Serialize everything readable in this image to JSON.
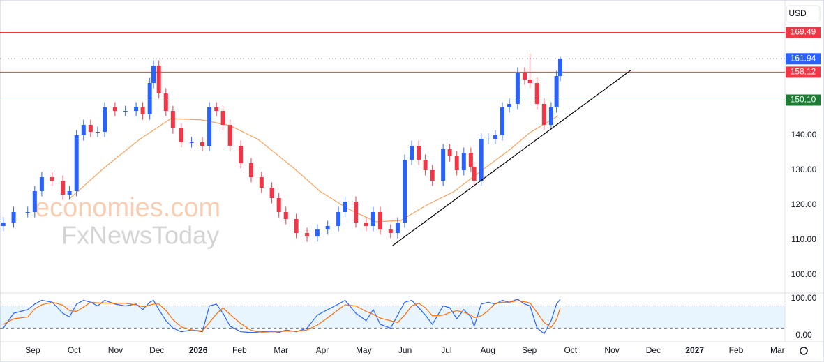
{
  "currency": "USD",
  "watermark": [
    "economies.com",
    "FxNewsToday"
  ],
  "chart_data": [
    {
      "type": "candlestick",
      "x": [
        -0.71,
        -0.46,
        -0.12,
        0.05,
        0.22,
        0.47,
        0.73,
        0.89,
        1.06,
        1.23,
        1.4,
        1.57,
        1.74,
        1.99,
        2.24,
        2.5,
        2.66,
        2.83,
        2.92,
        3.05,
        3.22,
        3.39,
        3.59,
        3.84,
        4.1,
        4.27,
        4.44,
        4.6,
        4.77,
        5.03,
        5.28,
        5.53,
        5.78,
        5.95,
        6.12,
        6.37,
        6.63,
        6.88,
        7.13,
        7.39,
        7.55,
        7.81,
        8.06,
        8.23,
        8.4,
        8.65,
        8.82,
        8.99,
        9.16,
        9.33,
        9.49,
        9.66,
        9.92,
        10.08,
        10.25,
        10.42,
        10.59,
        10.67,
        10.84,
        11.01,
        11.18,
        11.35,
        11.52,
        11.72,
        11.89,
        12.02,
        12.19,
        12.36,
        12.53,
        12.66,
        12.75
      ],
      "open": [
        114,
        115,
        118,
        118,
        124,
        128,
        127,
        123,
        124,
        140,
        143,
        141,
        141,
        148,
        147,
        147,
        148,
        146,
        155,
        160,
        152,
        147,
        142,
        138,
        138,
        137,
        148,
        147,
        143,
        137,
        132,
        128,
        125,
        122,
        118,
        116,
        112,
        111,
        113,
        114,
        118,
        121,
        115,
        114,
        118,
        113,
        112,
        115,
        133,
        137,
        133,
        130,
        127,
        136,
        134,
        130,
        135,
        131,
        127,
        139,
        139,
        140,
        148,
        149,
        158,
        156,
        155,
        149,
        143,
        148,
        157
      ],
      "high": [
        116.5,
        119.5,
        119.5,
        125.5,
        129.5,
        129.5,
        128.5,
        125.5,
        141.5,
        144.5,
        144.5,
        142.5,
        149.5,
        149.5,
        148.5,
        149.5,
        149.5,
        156.5,
        161.5,
        161.5,
        153.5,
        148.5,
        143.5,
        139.5,
        139.5,
        149.5,
        149.5,
        148.5,
        144.5,
        138.5,
        133.5,
        129.5,
        126.5,
        123.5,
        119.5,
        117.5,
        113.5,
        114.5,
        115.5,
        119.5,
        122.5,
        122.5,
        116.5,
        119.5,
        119.5,
        114.5,
        116.5,
        134.5,
        138.5,
        138.5,
        134.5,
        131.5,
        137.5,
        137.5,
        135.5,
        136.5,
        136.5,
        132.5,
        140.5,
        140.5,
        141.5,
        149.5,
        150.5,
        159.5,
        159.5,
        163.5,
        156.5,
        150.5,
        149.5,
        158.5,
        162.5
      ],
      "low": [
        112.5,
        113.5,
        116.5,
        116.5,
        122.5,
        125.5,
        121.5,
        121.5,
        122.5,
        138.5,
        139.5,
        139.5,
        139.5,
        145.5,
        145.5,
        145.5,
        144.5,
        144.5,
        153.5,
        150.5,
        145.5,
        140.5,
        136.5,
        136.5,
        135.5,
        135.5,
        145.5,
        141.5,
        135.5,
        130.5,
        126.5,
        123.5,
        120.5,
        116.5,
        114.5,
        110.5,
        109.5,
        109.5,
        111.5,
        112.5,
        116.5,
        113.5,
        112.5,
        112.5,
        111.5,
        110.5,
        110.5,
        113.5,
        131.5,
        131.5,
        128.5,
        125.5,
        125.5,
        132.5,
        128.5,
        128.5,
        129.5,
        125.5,
        125.5,
        137.5,
        137.5,
        138.5,
        146.5,
        147.5,
        154.5,
        153.5,
        147.5,
        141.5,
        141.5,
        146.5,
        155.5
      ],
      "close": [
        115,
        118,
        118,
        124,
        128,
        127,
        123,
        124,
        140,
        143,
        141,
        141,
        148,
        147,
        147,
        148,
        146,
        155,
        160,
        152,
        147,
        142,
        138,
        138,
        137,
        148,
        147,
        143,
        137,
        132,
        128,
        125,
        122,
        118,
        116,
        112,
        111,
        113,
        114,
        118,
        121,
        115,
        114,
        118,
        113,
        112,
        115,
        133,
        137,
        133,
        130,
        127,
        136,
        134,
        130,
        135,
        131,
        127,
        139,
        139,
        140,
        148,
        149,
        158,
        156,
        155,
        149,
        143,
        148,
        157,
        161.94
      ],
      "up_color": "#2962ff",
      "down_color": "#f23645",
      "xlim": [
        -0.79,
        18.18
      ],
      "xticks": [
        {
          "value": 0,
          "label": "Sep"
        },
        {
          "value": 1,
          "label": "Oct"
        },
        {
          "value": 2,
          "label": "Nov"
        },
        {
          "value": 3,
          "label": "Dec"
        },
        {
          "value": 4,
          "label": "2026"
        },
        {
          "value": 5,
          "label": "Feb"
        },
        {
          "value": 6,
          "label": "Mar"
        },
        {
          "value": 7,
          "label": "Apr"
        },
        {
          "value": 8,
          "label": "May"
        },
        {
          "value": 9,
          "label": "Jun"
        },
        {
          "value": 10,
          "label": "Jul"
        },
        {
          "value": 11,
          "label": "Aug"
        },
        {
          "value": 12,
          "label": "Sep"
        },
        {
          "value": 13,
          "label": "Oct"
        },
        {
          "value": 14,
          "label": "Nov"
        },
        {
          "value": 15,
          "label": "Dec"
        },
        {
          "value": 16,
          "label": "2027"
        },
        {
          "value": 17,
          "label": "Feb"
        },
        {
          "value": 18,
          "label": "Mar"
        }
      ],
      "ylim": [
        95.2,
        178.8
      ],
      "yticks": [
        {
          "value": 100,
          "label": "100.00"
        },
        {
          "value": 110,
          "label": "110.00"
        },
        {
          "value": 120,
          "label": "120.00"
        },
        {
          "value": 130,
          "label": "130.00"
        },
        {
          "value": 140,
          "label": "140.00"
        }
      ],
      "moving_average": {
        "color": "#f7a35c",
        "x": [
          0.89,
          1.74,
          2.58,
          3.34,
          4.1,
          4.77,
          5.45,
          6.29,
          6.96,
          7.64,
          8.31,
          8.9,
          9.49,
          10.17,
          10.84,
          11.52,
          12.02,
          12.7
        ],
        "values": [
          121.8,
          130.8,
          138.8,
          144.8,
          144.4,
          142.8,
          138.8,
          130.8,
          123.8,
          118.8,
          115.2,
          115.6,
          119.8,
          123.8,
          129.8,
          135.8,
          140.8,
          145.6
        ]
      },
      "trendline": {
        "color": "#000000",
        "x": [
          8.7,
          14.47
        ],
        "y": [
          108.4,
          158.8
        ]
      },
      "levels": [
        {
          "value": 169.49,
          "color": "#f23645"
        },
        {
          "value": 158.12,
          "color": "#f23645"
        },
        {
          "value": 150.1,
          "label": "150.10",
          "color": "#1e7b34"
        }
      ],
      "last_price": {
        "value": 161.94,
        "color": "#2962ff"
      }
    },
    {
      "type": "stochastic",
      "x": [
        -0.71,
        -0.46,
        -0.12,
        0.05,
        0.22,
        0.47,
        0.73,
        0.89,
        1.06,
        1.23,
        1.4,
        1.57,
        1.74,
        1.99,
        2.24,
        2.5,
        2.66,
        2.83,
        2.92,
        3.05,
        3.22,
        3.39,
        3.59,
        3.84,
        4.1,
        4.27,
        4.44,
        4.6,
        4.77,
        5.03,
        5.28,
        5.53,
        5.78,
        5.95,
        6.12,
        6.37,
        6.63,
        6.88,
        7.13,
        7.39,
        7.55,
        7.81,
        8.06,
        8.23,
        8.4,
        8.65,
        8.82,
        8.99,
        9.16,
        9.33,
        9.49,
        9.66,
        9.92,
        10.08,
        10.25,
        10.42,
        10.59,
        10.67,
        10.84,
        11.01,
        11.18,
        11.35,
        11.52,
        11.72,
        11.89,
        12.02,
        12.19,
        12.36,
        12.53,
        12.66,
        12.75
      ],
      "series": [
        {
          "color": "#2962ff",
          "values": [
            20,
            60,
            70,
            85,
            95,
            90,
            60,
            50,
            85,
            95,
            90,
            80,
            95,
            85,
            80,
            85,
            70,
            90,
            95,
            70,
            40,
            20,
            10,
            15,
            10,
            80,
            85,
            60,
            25,
            10,
            8,
            10,
            12,
            8,
            15,
            10,
            20,
            55,
            70,
            85,
            95,
            60,
            40,
            70,
            30,
            20,
            55,
            90,
            95,
            75,
            55,
            30,
            80,
            75,
            45,
            70,
            50,
            25,
            85,
            90,
            85,
            95,
            90,
            98,
            85,
            80,
            20,
            5,
            40,
            85,
            98
          ]
        },
        {
          "color": "#ff6d00",
          "values": [
            30,
            45,
            50,
            72,
            83,
            90,
            82,
            67,
            65,
            77,
            90,
            88,
            88,
            87,
            87,
            83,
            78,
            82,
            85,
            85,
            68,
            43,
            23,
            15,
            12,
            35,
            58,
            75,
            57,
            32,
            14,
            9,
            10,
            10,
            12,
            11,
            15,
            28,
            48,
            70,
            83,
            80,
            65,
            57,
            47,
            40,
            35,
            55,
            80,
            87,
            75,
            53,
            55,
            62,
            67,
            63,
            55,
            48,
            53,
            67,
            87,
            90,
            90,
            94,
            91,
            88,
            62,
            35,
            22,
            43,
            74
          ]
        }
      ],
      "xlim": [
        -0.79,
        18.18
      ],
      "ylim": [
        -15,
        113
      ],
      "bands": [
        20,
        80
      ],
      "yticks": [
        {
          "value": 100,
          "label": "100.00"
        },
        {
          "value": 0,
          "label": "0.00"
        }
      ]
    }
  ]
}
